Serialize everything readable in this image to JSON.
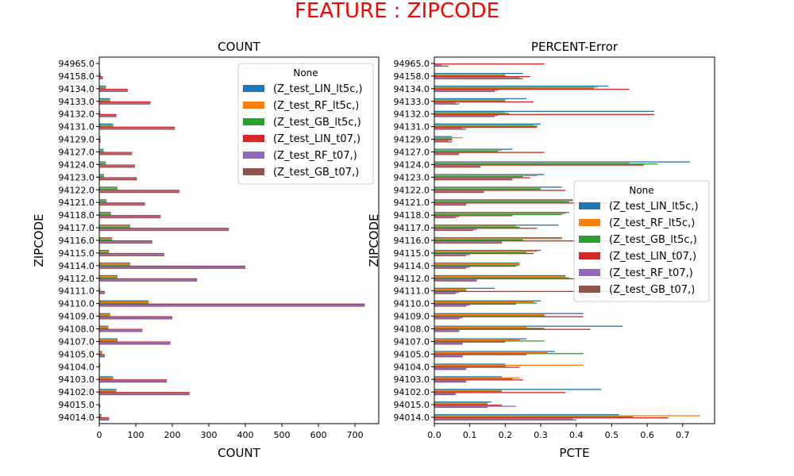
{
  "suptitle": "FEATURE : ZIPCODE",
  "chart_data": [
    {
      "type": "bar",
      "orientation": "horizontal",
      "title": "COUNT",
      "xlabel": "COUNT",
      "ylabel": "ZIPCODE",
      "xlim": [
        0,
        765
      ],
      "xticks": [
        "0",
        "100",
        "200",
        "300",
        "400",
        "500",
        "600",
        "700"
      ],
      "grid": false,
      "legend": {
        "title": "None",
        "placement": "top-right"
      },
      "categories": [
        "94014.0",
        "94015.0",
        "94102.0",
        "94103.0",
        "94104.0",
        "94105.0",
        "94107.0",
        "94108.0",
        "94109.0",
        "94110.0",
        "94111.0",
        "94112.0",
        "94114.0",
        "94115.0",
        "94116.0",
        "94117.0",
        "94118.0",
        "94121.0",
        "94122.0",
        "94123.0",
        "94124.0",
        "94127.0",
        "94129.0",
        "94131.0",
        "94132.0",
        "94133.0",
        "94134.0",
        "94158.0",
        "94965.0"
      ],
      "series": [
        {
          "name": "(Z_test_LIN_lt5c,)",
          "color": "#1f77b4",
          "values": [
            6,
            1,
            47,
            38,
            3,
            8,
            50,
            25,
            30,
            135,
            3,
            50,
            85,
            27,
            35,
            85,
            32,
            20,
            50,
            13,
            18,
            12,
            3,
            38,
            3,
            30,
            18,
            4,
            1
          ]
        },
        {
          "name": "(Z_test_RF_lt5c,)",
          "color": "#ff7f0e",
          "values": [
            6,
            1,
            47,
            38,
            3,
            8,
            50,
            25,
            30,
            135,
            3,
            50,
            85,
            27,
            35,
            85,
            32,
            20,
            50,
            13,
            18,
            12,
            3,
            38,
            3,
            30,
            18,
            4,
            1
          ]
        },
        {
          "name": "(Z_test_GB_lt5c,)",
          "color": "#2ca02c",
          "values": [
            6,
            1,
            47,
            38,
            3,
            8,
            50,
            25,
            30,
            135,
            3,
            50,
            85,
            27,
            35,
            85,
            32,
            20,
            50,
            13,
            18,
            12,
            3,
            38,
            3,
            30,
            18,
            4,
            1
          ]
        },
        {
          "name": "(Z_test_LIN_t07,)",
          "color": "#d62728",
          "values": [
            27,
            3,
            247,
            185,
            2,
            15,
            195,
            118,
            200,
            727,
            15,
            268,
            400,
            178,
            145,
            355,
            168,
            125,
            220,
            103,
            98,
            90,
            4,
            207,
            47,
            140,
            78,
            10,
            1
          ]
        },
        {
          "name": "(Z_test_RF_t07,)",
          "color": "#9467bd",
          "values": [
            27,
            3,
            247,
            185,
            2,
            15,
            195,
            118,
            200,
            727,
            15,
            268,
            400,
            178,
            145,
            355,
            168,
            125,
            220,
            103,
            98,
            90,
            4,
            207,
            47,
            140,
            78,
            10,
            1
          ]
        },
        {
          "name": "(Z_test_GB_t07,)",
          "color": "#8c564b",
          "values": [
            27,
            3,
            247,
            185,
            2,
            15,
            195,
            118,
            200,
            727,
            15,
            268,
            400,
            178,
            145,
            355,
            168,
            125,
            220,
            103,
            98,
            90,
            4,
            207,
            47,
            140,
            78,
            10,
            1
          ]
        }
      ]
    },
    {
      "type": "bar",
      "orientation": "horizontal",
      "title": "PERCENT-Error",
      "xlabel": "PCTE",
      "ylabel": "ZIPCODE",
      "xlim": [
        0,
        0.79
      ],
      "xticks": [
        "0.0",
        "0.1",
        "0.2",
        "0.3",
        "0.4",
        "0.5",
        "0.6",
        "0.7"
      ],
      "grid": false,
      "legend": {
        "title": "None",
        "placement": "center-right"
      },
      "categories": [
        "94014.0",
        "94015.0",
        "94102.0",
        "94103.0",
        "94104.0",
        "94105.0",
        "94107.0",
        "94108.0",
        "94109.0",
        "94110.0",
        "94111.0",
        "94112.0",
        "94114.0",
        "94115.0",
        "94116.0",
        "94117.0",
        "94118.0",
        "94121.0",
        "94122.0",
        "94123.0",
        "94124.0",
        "94127.0",
        "94129.0",
        "94131.0",
        "94132.0",
        "94133.0",
        "94134.0",
        "94158.0",
        "94965.0"
      ],
      "series": [
        {
          "name": "(Z_test_LIN_lt5c,)",
          "color": "#1f77b4",
          "values": [
            0.52,
            0.16,
            0.47,
            0.19,
            0.2,
            0.34,
            0.26,
            0.53,
            0.42,
            0.3,
            0.17,
            0.37,
            0.24,
            0.3,
            0.36,
            0.35,
            0.38,
            0.39,
            0.36,
            0.31,
            0.72,
            0.22,
            0.05,
            0.3,
            0.62,
            0.26,
            0.49,
            0.25,
            0
          ]
        },
        {
          "name": "(Z_test_RF_lt5c,)",
          "color": "#ff7f0e",
          "values": [
            0.75,
            0.15,
            0.19,
            0.24,
            0.42,
            0.32,
            0.24,
            0.26,
            0.31,
            0.28,
            0.09,
            0.37,
            0.24,
            0.29,
            0.36,
            0.23,
            0.37,
            0.39,
            0.3,
            0.29,
            0.55,
            0.19,
            0.08,
            0.28,
            0.2,
            0.2,
            0.46,
            0.2,
            0
          ]
        },
        {
          "name": "(Z_test_GB_lt5c,)",
          "color": "#2ca02c",
          "values": [
            0.56,
            0.15,
            0.19,
            0.22,
            0.2,
            0.42,
            0.31,
            0.31,
            0.31,
            0.29,
            0.09,
            0.38,
            0.24,
            0.26,
            0.25,
            0.24,
            0.36,
            0.38,
            0.3,
            0.25,
            0.63,
            0.18,
            0.05,
            0.29,
            0.21,
            0.2,
            0.45,
            0.2,
            0
          ]
        },
        {
          "name": "(Z_test_LIN_t07,)",
          "color": "#d62728",
          "values": [
            0.66,
            0.19,
            0.37,
            0.25,
            0.24,
            0.26,
            0.2,
            0.44,
            0.42,
            0.23,
            0.55,
            0.5,
            0.23,
            0.28,
            0.52,
            0.29,
            0.22,
            0.49,
            0.37,
            0.27,
            0.59,
            0.31,
            0.05,
            0.29,
            0.62,
            0.28,
            0.55,
            0.27,
            0.31
          ]
        },
        {
          "name": "(Z_test_RF_t07,)",
          "color": "#9467bd",
          "values": [
            0.39,
            0.23,
            0.06,
            0.09,
            0.09,
            0.08,
            0.08,
            0.07,
            0.08,
            0.1,
            0.07,
            0.12,
            0.1,
            0.1,
            0.19,
            0.12,
            0.07,
            0.09,
            0.14,
            0.22,
            0.13,
            0.07,
            0.04,
            0.08,
            0.18,
            0.06,
            0.18,
            0.24,
            0.02
          ]
        },
        {
          "name": "(Z_test_GB_t07,)",
          "color": "#8c564b",
          "values": [
            0.4,
            0.15,
            0.06,
            0.09,
            0.09,
            0.08,
            0.08,
            0.07,
            0.07,
            0.09,
            0.06,
            0.12,
            0.09,
            0.09,
            0.19,
            0.11,
            0.06,
            0.09,
            0.14,
            0.22,
            0.13,
            0.07,
            0.05,
            0.09,
            0.17,
            0.07,
            0.17,
            0.25,
            0.04
          ]
        }
      ]
    }
  ]
}
